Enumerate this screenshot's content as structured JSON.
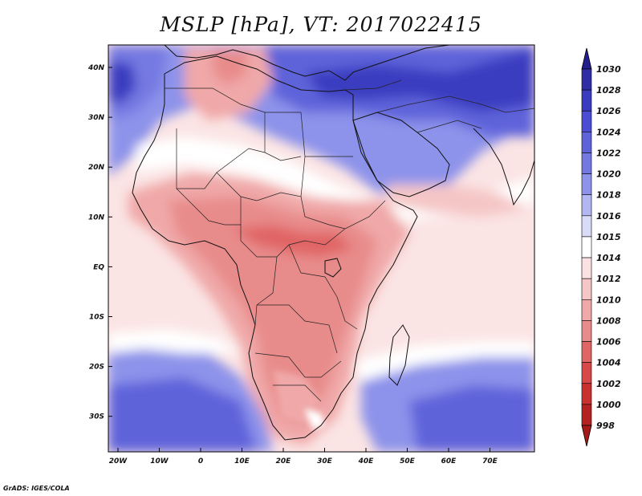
{
  "title": "MSLP [hPa], VT: 2017022415",
  "footer": "GrADS: IGES/COLA",
  "map": {
    "variable": "MSLP",
    "units": "hPa",
    "valid_time": "2017022415",
    "lon_range": [
      -23,
      80
    ],
    "lat_range": [
      -37,
      46
    ],
    "lat_labels": [
      "40N",
      "30N",
      "20N",
      "10N",
      "EQ",
      "10S",
      "20S",
      "30S"
    ],
    "lon_labels": [
      "20W",
      "10W",
      "0",
      "10E",
      "20E",
      "30E",
      "40E",
      "50E",
      "60E",
      "70E"
    ]
  },
  "colorbar": {
    "levels": [
      "1030",
      "1028",
      "1026",
      "1024",
      "1022",
      "1020",
      "1018",
      "1016",
      "1015",
      "1014",
      "1012",
      "1010",
      "1008",
      "1006",
      "1004",
      "1002",
      "1000",
      "998"
    ],
    "colors": [
      "#231e8c",
      "#2f2da6",
      "#3a3cc0",
      "#4b4ed2",
      "#5f63da",
      "#7479e2",
      "#8d93ea",
      "#b2b7f2",
      "#d9dcf8",
      "#ffffff",
      "#fbe1e1",
      "#f5c6c6",
      "#f0a8a8",
      "#e88b8b",
      "#e06565",
      "#d94848",
      "#c93030",
      "#b32121",
      "#a51919"
    ]
  }
}
